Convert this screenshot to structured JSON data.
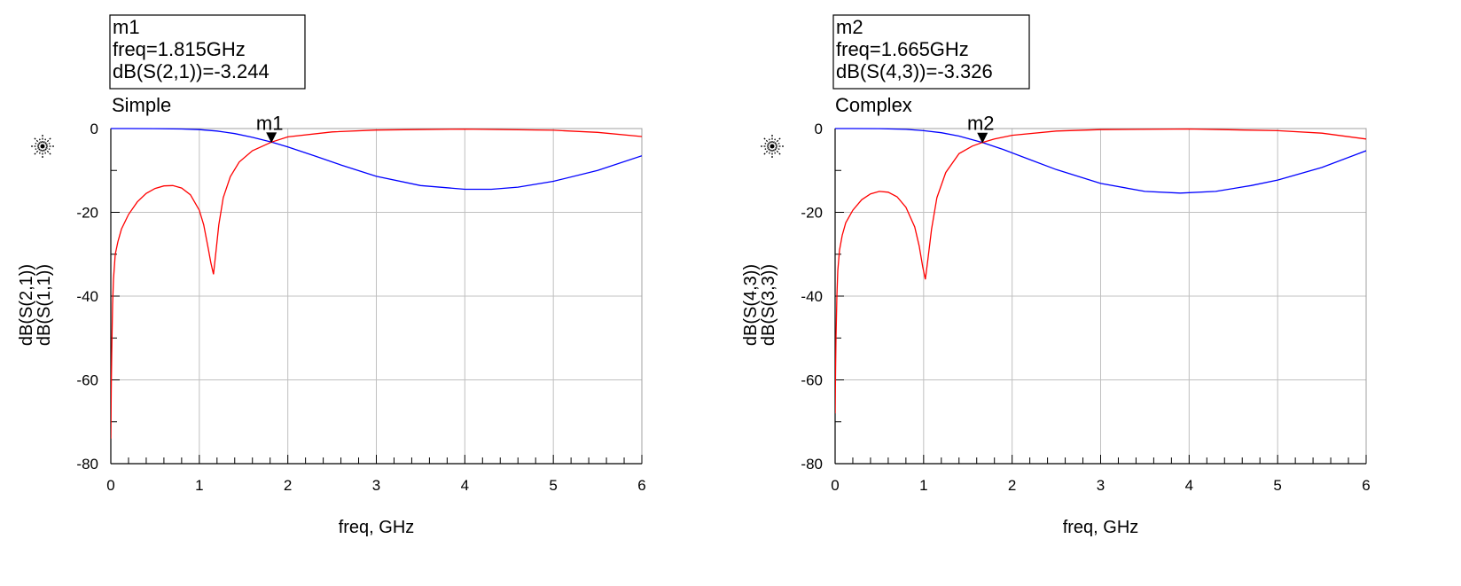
{
  "chart_data": [
    {
      "type": "line",
      "title": "Simple",
      "xlabel": "freq, GHz",
      "ylabel_parts": [
        "dB(S(2,1))",
        "dB(S(1,1))"
      ],
      "xlim": [
        0,
        6
      ],
      "ylim": [
        -80,
        0
      ],
      "xticks": [
        "0",
        "1",
        "2",
        "3",
        "4",
        "5",
        "6"
      ],
      "yticks": [
        "0",
        "-20",
        "-40",
        "-60",
        "-80"
      ],
      "grid": true,
      "icon": "ads-sun-icon",
      "series": [
        {
          "name": "dB(S(2,1))",
          "color": "#0000ff",
          "x": [
            0,
            0.2,
            0.5,
            0.8,
            1.0,
            1.2,
            1.4,
            1.6,
            1.815,
            2.0,
            2.3,
            2.6,
            3.0,
            3.5,
            4.0,
            4.3,
            4.6,
            5.0,
            5.5,
            6.0
          ],
          "y": [
            0,
            0,
            -0.02,
            -0.1,
            -0.25,
            -0.6,
            -1.2,
            -2.1,
            -3.244,
            -4.4,
            -6.5,
            -8.7,
            -11.4,
            -13.6,
            -14.5,
            -14.5,
            -14.0,
            -12.6,
            -10.0,
            -6.5
          ]
        },
        {
          "name": "dB(S(1,1))",
          "color": "#ff0000",
          "x": [
            0,
            0.005,
            0.01,
            0.02,
            0.03,
            0.05,
            0.08,
            0.12,
            0.2,
            0.3,
            0.4,
            0.5,
            0.6,
            0.7,
            0.8,
            0.9,
            1.0,
            1.05,
            1.1,
            1.13,
            1.16,
            1.19,
            1.22,
            1.27,
            1.35,
            1.45,
            1.6,
            1.815,
            2.0,
            2.5,
            3.0,
            4.0,
            5.0,
            5.5,
            6.0
          ],
          "y": [
            -74,
            -62,
            -54,
            -42,
            -36,
            -30,
            -27,
            -24,
            -20.5,
            -17.5,
            -15.5,
            -14.3,
            -13.7,
            -13.6,
            -14.2,
            -15.8,
            -19.5,
            -23,
            -28.5,
            -32,
            -34.8,
            -29,
            -23,
            -16.5,
            -11.5,
            -8.0,
            -5.3,
            -3.244,
            -2.0,
            -0.8,
            -0.35,
            -0.12,
            -0.4,
            -0.9,
            -1.9
          ]
        }
      ],
      "marker": {
        "label": "m1",
        "info": [
          "m1",
          "freq=1.815GHz",
          "dB(S(2,1))=-3.244"
        ],
        "x": 1.815,
        "y": -3.244
      }
    },
    {
      "type": "line",
      "title": "Complex",
      "xlabel": "freq, GHz",
      "ylabel_parts": [
        "dB(S(4,3))",
        "dB(S(3,3))"
      ],
      "xlim": [
        0,
        6
      ],
      "ylim": [
        -80,
        0
      ],
      "xticks": [
        "0",
        "1",
        "2",
        "3",
        "4",
        "5",
        "6"
      ],
      "yticks": [
        "0",
        "-20",
        "-40",
        "-60",
        "-80"
      ],
      "grid": true,
      "icon": "ads-sun-icon",
      "series": [
        {
          "name": "dB(S(4,3))",
          "color": "#0000ff",
          "x": [
            0,
            0.2,
            0.5,
            0.8,
            1.0,
            1.2,
            1.4,
            1.665,
            1.9,
            2.2,
            2.5,
            3.0,
            3.5,
            3.9,
            4.3,
            4.7,
            5.0,
            5.5,
            6.0
          ],
          "y": [
            0,
            0,
            -0.03,
            -0.2,
            -0.5,
            -1.0,
            -1.8,
            -3.326,
            -5.0,
            -7.4,
            -9.8,
            -13.1,
            -15.0,
            -15.4,
            -15.0,
            -13.6,
            -12.3,
            -9.3,
            -5.3
          ]
        },
        {
          "name": "dB(S(3,3))",
          "color": "#ff0000",
          "x": [
            0,
            0.005,
            0.01,
            0.02,
            0.03,
            0.05,
            0.08,
            0.12,
            0.2,
            0.3,
            0.4,
            0.5,
            0.6,
            0.7,
            0.8,
            0.9,
            0.95,
            0.99,
            1.02,
            1.05,
            1.09,
            1.15,
            1.25,
            1.4,
            1.55,
            1.665,
            1.8,
            2.0,
            2.5,
            3.0,
            4.0,
            5.0,
            5.5,
            6.0
          ],
          "y": [
            -68,
            -58,
            -50,
            -40,
            -34,
            -29,
            -25.5,
            -22.5,
            -19.5,
            -17.0,
            -15.6,
            -15.0,
            -15.2,
            -16.3,
            -18.8,
            -23.5,
            -28,
            -33,
            -36,
            -31,
            -24,
            -16.5,
            -10.5,
            -6.0,
            -4.2,
            -3.326,
            -2.5,
            -1.6,
            -0.6,
            -0.25,
            -0.1,
            -0.5,
            -1.1,
            -2.5
          ]
        }
      ],
      "marker": {
        "label": "m2",
        "info": [
          "m2",
          "freq=1.665GHz",
          "dB(S(4,3))=-3.326"
        ],
        "x": 1.665,
        "y": -3.326
      }
    }
  ]
}
